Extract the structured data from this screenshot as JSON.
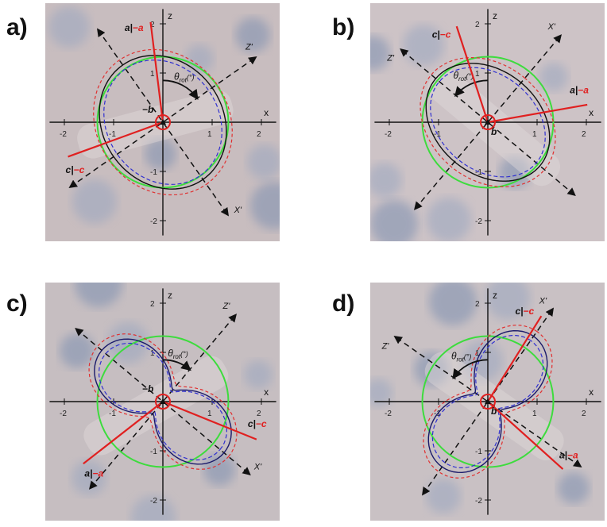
{
  "panels": [
    {
      "label": "a)",
      "axis_x": "x",
      "axis_z": "z",
      "axis_x_rot": "X'",
      "axis_z_rot": "Z'",
      "x_ticks": [
        "-2",
        "-1",
        "1",
        "2"
      ],
      "z_ticks": [
        "2",
        "1",
        "-1",
        "-2"
      ],
      "theta": {
        "symbol": "θ",
        "sub": "rot",
        "unit": "(°)"
      },
      "a_label": {
        "plain": "a|",
        "negated": "−a"
      },
      "c_label": {
        "plain": "c|",
        "negated": "−c"
      },
      "b_label": "−b"
    },
    {
      "label": "b)",
      "axis_x": "x",
      "axis_z": "z",
      "axis_x_rot": "X'",
      "axis_z_rot": "Z'",
      "x_ticks": [
        "-2",
        "-1",
        "1",
        "2"
      ],
      "z_ticks": [
        "2",
        "1",
        "-1",
        "-2"
      ],
      "theta": {
        "symbol": "θ",
        "sub": "rot",
        "unit": "(°)"
      },
      "a_label": {
        "plain": "a|",
        "negated": "−a"
      },
      "c_label": {
        "plain": "c|",
        "negated": "−c"
      },
      "b_label": "b"
    },
    {
      "label": "c)",
      "axis_x": "x",
      "axis_z": "z",
      "axis_x_rot": "X'",
      "axis_z_rot": "Z'",
      "x_ticks": [
        "-2",
        "-1",
        "1",
        "2"
      ],
      "z_ticks": [
        "2",
        "1",
        "-1",
        "-2"
      ],
      "theta": {
        "symbol": "θ",
        "sub": "rot",
        "unit": "(°)"
      },
      "a_label": {
        "plain": "a|",
        "negated": "−a"
      },
      "c_label": {
        "plain": "c|",
        "negated": "−c"
      },
      "b_label": "−b"
    },
    {
      "label": "d)",
      "axis_x": "x",
      "axis_z": "z",
      "axis_x_rot": "X'",
      "axis_z_rot": "Z'",
      "x_ticks": [
        "-2",
        "-1",
        "1",
        "2"
      ],
      "z_ticks": [
        "2",
        "1",
        "-1",
        "-2"
      ],
      "theta": {
        "symbol": "θ",
        "sub": "rot",
        "unit": "(°)"
      },
      "a_label": {
        "plain": "a|",
        "negated": "−a"
      },
      "c_label": {
        "plain": "c|",
        "negated": "−c"
      },
      "b_label": "b"
    }
  ]
}
